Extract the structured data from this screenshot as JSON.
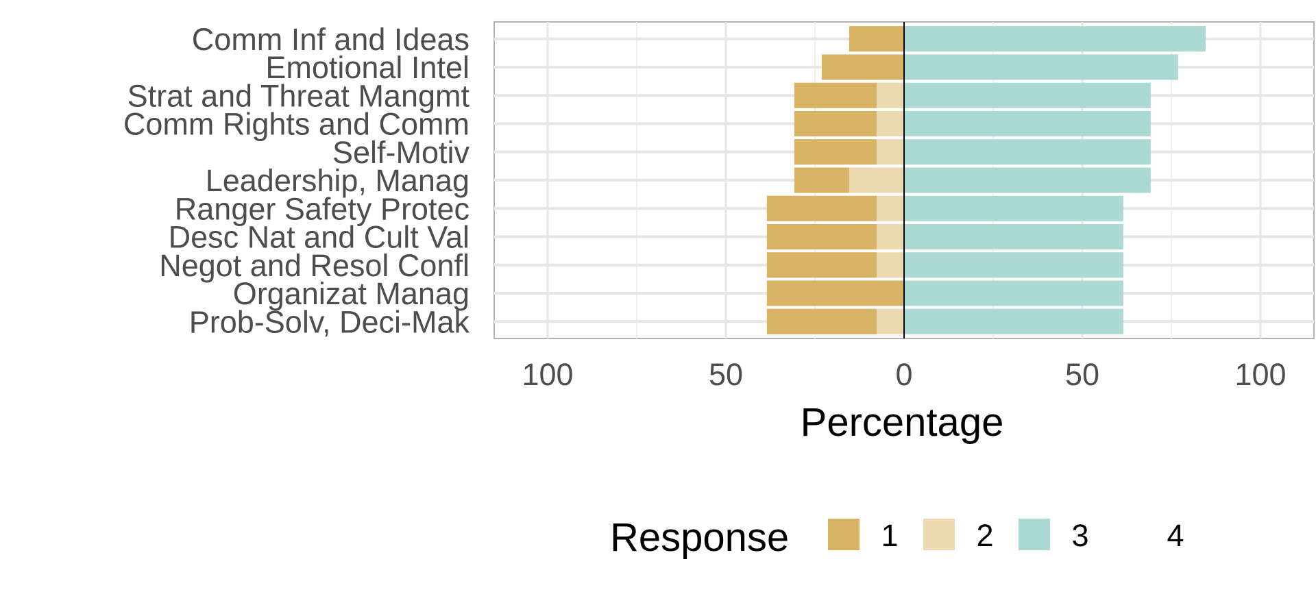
{
  "chart_data": {
    "type": "bar",
    "orientation": "horizontal-diverging",
    "title": "",
    "xlabel": "Percentage",
    "ylabel": "",
    "xlim": [
      -115,
      115
    ],
    "x_ticks": [
      -100,
      -50,
      0,
      50,
      100
    ],
    "x_tick_labels": [
      "100",
      "50",
      "0",
      "50",
      "100"
    ],
    "grid": true,
    "legend_position": "bottom",
    "legend_title": "Response",
    "categories": [
      "Comm Inf and Ideas",
      "Emotional Intel",
      "Strat and Threat Mangmt",
      "Comm Rights and Comm",
      "Self-Motiv",
      "Leadership, Manag",
      "Ranger Safety Protec",
      "Desc Nat and Cult Val",
      "Negot and Resol Confl",
      "Organizat Manag",
      "Prob-Solv, Deci-Mak"
    ],
    "series": [
      {
        "name": "1",
        "color": "#d9b365",
        "side": "negative",
        "values": [
          15.4,
          23.1,
          23.1,
          23.1,
          23.1,
          15.4,
          30.8,
          30.8,
          30.8,
          38.5,
          30.8
        ]
      },
      {
        "name": "2",
        "color": "#ebd9b2",
        "side": "negative",
        "values": [
          0,
          0,
          7.7,
          7.7,
          7.7,
          15.4,
          7.7,
          7.7,
          7.7,
          0,
          7.7
        ]
      },
      {
        "name": "3",
        "color": "#acd9d4",
        "side": "positive",
        "values": [
          84.6,
          76.9,
          69.2,
          69.2,
          69.2,
          69.2,
          61.5,
          61.5,
          61.5,
          61.5,
          61.5
        ]
      },
      {
        "name": "4",
        "color": "#5ab4ac",
        "side": "positive",
        "values": [
          0,
          0,
          0,
          0,
          0,
          0,
          0,
          0,
          0,
          0,
          0
        ]
      }
    ]
  }
}
